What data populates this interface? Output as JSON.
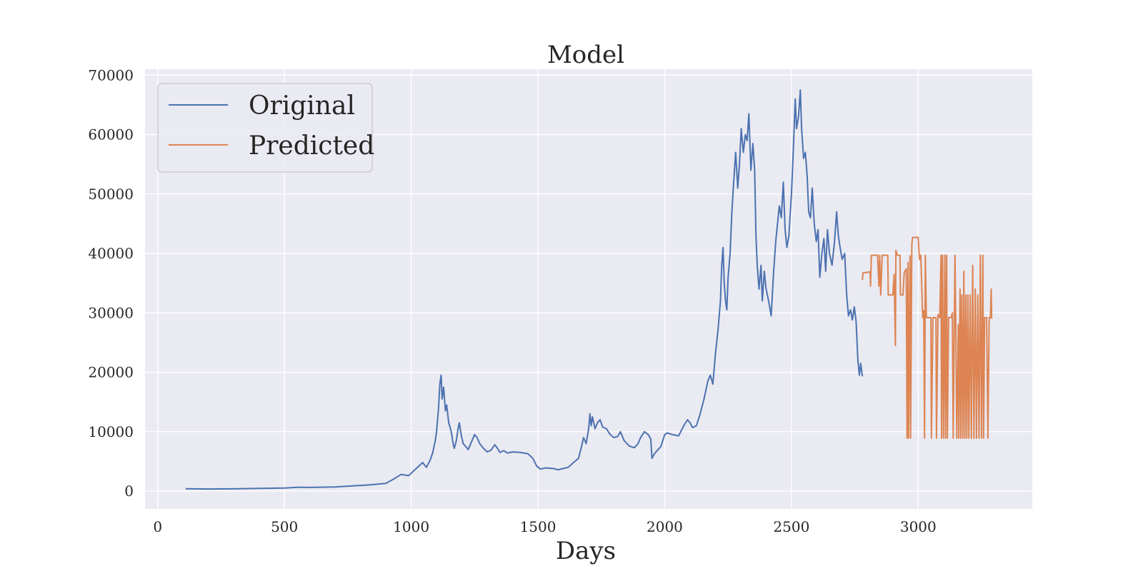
{
  "chart_data": {
    "type": "line",
    "title": "Model",
    "xlabel": "Days",
    "ylabel": "",
    "xlim": [
      -50,
      3450
    ],
    "ylim": [
      -3000,
      71000
    ],
    "xticks": [
      0,
      500,
      1000,
      1500,
      2000,
      2500,
      3000
    ],
    "yticks": [
      0,
      10000,
      20000,
      30000,
      40000,
      50000,
      60000,
      70000
    ],
    "grid": true,
    "legend_position": "top-left",
    "series": [
      {
        "name": "Original",
        "color": "#4c72b0",
        "points": [
          [
            110,
            400
          ],
          [
            200,
            350
          ],
          [
            300,
            380
          ],
          [
            400,
            450
          ],
          [
            500,
            520
          ],
          [
            560,
            650
          ],
          [
            600,
            620
          ],
          [
            700,
            700
          ],
          [
            780,
            900
          ],
          [
            820,
            1000
          ],
          [
            850,
            1100
          ],
          [
            900,
            1300
          ],
          [
            930,
            2000
          ],
          [
            960,
            2800
          ],
          [
            990,
            2600
          ],
          [
            1010,
            3400
          ],
          [
            1030,
            4200
          ],
          [
            1045,
            4800
          ],
          [
            1060,
            4000
          ],
          [
            1075,
            5200
          ],
          [
            1085,
            6500
          ],
          [
            1095,
            8500
          ],
          [
            1100,
            10000
          ],
          [
            1108,
            14000
          ],
          [
            1113,
            18000
          ],
          [
            1118,
            19500
          ],
          [
            1122,
            15500
          ],
          [
            1128,
            17500
          ],
          [
            1135,
            13500
          ],
          [
            1140,
            14500
          ],
          [
            1148,
            11500
          ],
          [
            1155,
            10500
          ],
          [
            1160,
            9500
          ],
          [
            1165,
            8000
          ],
          [
            1170,
            7200
          ],
          [
            1178,
            8500
          ],
          [
            1185,
            10500
          ],
          [
            1190,
            11500
          ],
          [
            1197,
            9500
          ],
          [
            1205,
            8000
          ],
          [
            1215,
            7500
          ],
          [
            1225,
            7000
          ],
          [
            1240,
            8500
          ],
          [
            1250,
            9500
          ],
          [
            1260,
            9000
          ],
          [
            1270,
            8000
          ],
          [
            1285,
            7200
          ],
          [
            1300,
            6600
          ],
          [
            1315,
            6900
          ],
          [
            1330,
            7800
          ],
          [
            1340,
            7200
          ],
          [
            1350,
            6500
          ],
          [
            1365,
            6800
          ],
          [
            1380,
            6400
          ],
          [
            1400,
            6600
          ],
          [
            1430,
            6500
          ],
          [
            1460,
            6300
          ],
          [
            1480,
            5500
          ],
          [
            1495,
            4200
          ],
          [
            1510,
            3700
          ],
          [
            1530,
            3900
          ],
          [
            1560,
            3800
          ],
          [
            1580,
            3600
          ],
          [
            1600,
            3800
          ],
          [
            1620,
            4000
          ],
          [
            1640,
            4800
          ],
          [
            1660,
            5500
          ],
          [
            1670,
            7200
          ],
          [
            1680,
            9000
          ],
          [
            1690,
            8000
          ],
          [
            1700,
            10500
          ],
          [
            1705,
            13000
          ],
          [
            1710,
            11000
          ],
          [
            1715,
            12500
          ],
          [
            1725,
            10500
          ],
          [
            1735,
            11500
          ],
          [
            1745,
            12000
          ],
          [
            1755,
            10800
          ],
          [
            1770,
            10500
          ],
          [
            1785,
            9500
          ],
          [
            1800,
            9000
          ],
          [
            1815,
            9200
          ],
          [
            1825,
            10000
          ],
          [
            1840,
            8500
          ],
          [
            1860,
            7600
          ],
          [
            1880,
            7300
          ],
          [
            1895,
            8000
          ],
          [
            1905,
            9000
          ],
          [
            1920,
            10000
          ],
          [
            1935,
            9500
          ],
          [
            1945,
            8800
          ],
          [
            1950,
            5500
          ],
          [
            1958,
            6200
          ],
          [
            1970,
            6800
          ],
          [
            1985,
            7500
          ],
          [
            2000,
            9500
          ],
          [
            2010,
            9800
          ],
          [
            2030,
            9500
          ],
          [
            2055,
            9300
          ],
          [
            2075,
            11000
          ],
          [
            2090,
            12000
          ],
          [
            2100,
            11500
          ],
          [
            2110,
            10700
          ],
          [
            2125,
            11000
          ],
          [
            2140,
            13000
          ],
          [
            2155,
            15500
          ],
          [
            2170,
            18500
          ],
          [
            2180,
            19500
          ],
          [
            2190,
            18000
          ],
          [
            2200,
            23000
          ],
          [
            2210,
            27000
          ],
          [
            2220,
            32000
          ],
          [
            2225,
            38000
          ],
          [
            2230,
            41000
          ],
          [
            2235,
            35000
          ],
          [
            2240,
            32000
          ],
          [
            2245,
            30500
          ],
          [
            2250,
            36000
          ],
          [
            2258,
            40000
          ],
          [
            2265,
            47000
          ],
          [
            2272,
            52000
          ],
          [
            2280,
            57000
          ],
          [
            2288,
            51000
          ],
          [
            2295,
            55000
          ],
          [
            2302,
            61000
          ],
          [
            2310,
            57000
          ],
          [
            2318,
            60000
          ],
          [
            2325,
            59000
          ],
          [
            2332,
            63500
          ],
          [
            2340,
            54000
          ],
          [
            2348,
            58500
          ],
          [
            2355,
            54000
          ],
          [
            2360,
            43000
          ],
          [
            2365,
            38000
          ],
          [
            2372,
            34000
          ],
          [
            2380,
            38000
          ],
          [
            2385,
            32000
          ],
          [
            2393,
            37000
          ],
          [
            2400,
            34000
          ],
          [
            2410,
            32000
          ],
          [
            2420,
            29500
          ],
          [
            2430,
            37000
          ],
          [
            2438,
            42000
          ],
          [
            2445,
            45000
          ],
          [
            2452,
            48000
          ],
          [
            2460,
            46000
          ],
          [
            2468,
            52000
          ],
          [
            2475,
            44000
          ],
          [
            2482,
            41000
          ],
          [
            2490,
            43000
          ],
          [
            2500,
            50000
          ],
          [
            2508,
            58000
          ],
          [
            2515,
            66000
          ],
          [
            2520,
            61000
          ],
          [
            2528,
            63000
          ],
          [
            2535,
            67500
          ],
          [
            2540,
            61000
          ],
          [
            2548,
            56000
          ],
          [
            2555,
            57000
          ],
          [
            2562,
            53000
          ],
          [
            2568,
            47000
          ],
          [
            2575,
            46000
          ],
          [
            2582,
            51000
          ],
          [
            2590,
            45000
          ],
          [
            2598,
            42000
          ],
          [
            2605,
            44000
          ],
          [
            2612,
            36000
          ],
          [
            2620,
            40000
          ],
          [
            2628,
            42500
          ],
          [
            2635,
            37000
          ],
          [
            2642,
            44000
          ],
          [
            2650,
            40000
          ],
          [
            2660,
            38000
          ],
          [
            2670,
            42000
          ],
          [
            2678,
            47000
          ],
          [
            2685,
            43000
          ],
          [
            2692,
            41000
          ],
          [
            2700,
            39000
          ],
          [
            2710,
            40000
          ],
          [
            2718,
            33000
          ],
          [
            2725,
            29500
          ],
          [
            2733,
            30500
          ],
          [
            2740,
            28800
          ],
          [
            2748,
            31000
          ],
          [
            2755,
            28500
          ],
          [
            2762,
            22000
          ],
          [
            2768,
            19500
          ],
          [
            2773,
            21500
          ],
          [
            2780,
            19300
          ]
        ]
      },
      {
        "name": "Predicted",
        "color": "#dd8452",
        "points": [
          [
            2780,
            35500
          ],
          [
            2782,
            36700
          ],
          [
            2810,
            36900
          ],
          [
            2812,
            34500
          ],
          [
            2815,
            39700
          ],
          [
            2840,
            39700
          ],
          [
            2845,
            34500
          ],
          [
            2848,
            39700
          ],
          [
            2852,
            33000
          ],
          [
            2858,
            39700
          ],
          [
            2880,
            39700
          ],
          [
            2882,
            33000
          ],
          [
            2900,
            33000
          ],
          [
            2905,
            36500
          ],
          [
            2910,
            24500
          ],
          [
            2912,
            40500
          ],
          [
            2918,
            39700
          ],
          [
            2928,
            39700
          ],
          [
            2930,
            33000
          ],
          [
            2940,
            33000
          ],
          [
            2945,
            36800
          ],
          [
            2953,
            37400
          ],
          [
            2956,
            8900
          ],
          [
            2960,
            38500
          ],
          [
            2962,
            8900
          ],
          [
            2968,
            39600
          ],
          [
            2970,
            8900
          ],
          [
            2975,
            41600
          ],
          [
            2978,
            42700
          ],
          [
            3000,
            42700
          ],
          [
            3005,
            39000
          ],
          [
            3010,
            39700
          ],
          [
            3018,
            29200
          ],
          [
            3022,
            30400
          ],
          [
            3025,
            8900
          ],
          [
            3028,
            39700
          ],
          [
            3032,
            29200
          ],
          [
            3050,
            29200
          ],
          [
            3052,
            8900
          ],
          [
            3058,
            29200
          ],
          [
            3070,
            29200
          ],
          [
            3072,
            8900
          ],
          [
            3078,
            29700
          ],
          [
            3085,
            29200
          ],
          [
            3090,
            39700
          ],
          [
            3092,
            8900
          ],
          [
            3096,
            39700
          ],
          [
            3100,
            8900
          ],
          [
            3105,
            39700
          ],
          [
            3108,
            8900
          ],
          [
            3112,
            39700
          ],
          [
            3115,
            8900
          ],
          [
            3120,
            29200
          ],
          [
            3130,
            29200
          ],
          [
            3135,
            30000
          ],
          [
            3138,
            8900
          ],
          [
            3145,
            39700
          ],
          [
            3148,
            29200
          ],
          [
            3152,
            8900
          ],
          [
            3158,
            28000
          ],
          [
            3160,
            8900
          ],
          [
            3165,
            34000
          ],
          [
            3168,
            8900
          ],
          [
            3172,
            33000
          ],
          [
            3176,
            8900
          ],
          [
            3180,
            37000
          ],
          [
            3184,
            8900
          ],
          [
            3188,
            33000
          ],
          [
            3192,
            8900
          ],
          [
            3196,
            33000
          ],
          [
            3200,
            8900
          ],
          [
            3205,
            33000
          ],
          [
            3210,
            8900
          ],
          [
            3215,
            38000
          ],
          [
            3220,
            8900
          ],
          [
            3225,
            34000
          ],
          [
            3230,
            8900
          ],
          [
            3235,
            33000
          ],
          [
            3240,
            8900
          ],
          [
            3245,
            39700
          ],
          [
            3250,
            8900
          ],
          [
            3255,
            39700
          ],
          [
            3258,
            8900
          ],
          [
            3262,
            29200
          ],
          [
            3270,
            29200
          ],
          [
            3275,
            8900
          ],
          [
            3280,
            29200
          ],
          [
            3285,
            29200
          ],
          [
            3288,
            34000
          ],
          [
            3290,
            29000
          ]
        ]
      }
    ]
  }
}
